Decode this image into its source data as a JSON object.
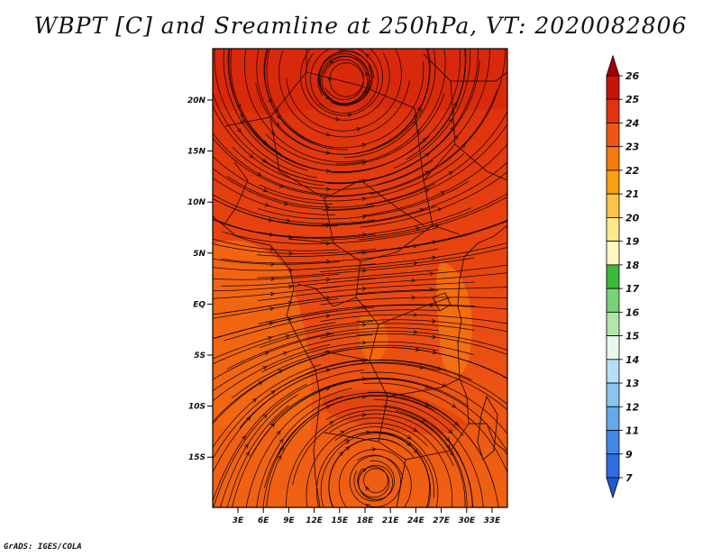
{
  "title": "WBPT [C] and Sreamline at 250hPa, VT: 2020082806",
  "credit": "GrADS: IGES/COLA",
  "map": {
    "lat_labels": [
      "20N",
      "15N",
      "10N",
      "5N",
      "EQ",
      "5S",
      "10S",
      "15S"
    ],
    "lon_labels": [
      "3E",
      "6E",
      "9E",
      "12E",
      "15E",
      "18E",
      "21E",
      "24E",
      "27E",
      "30E",
      "33E"
    ],
    "fill_colors": {
      "base": "#ea4a14",
      "north": "#de2e0c",
      "south": "#f1650f",
      "warm_patch": "#f5780e"
    }
  },
  "colorbar": {
    "labels": [
      "26",
      "25",
      "24",
      "23",
      "22",
      "21",
      "20",
      "19",
      "18",
      "17",
      "16",
      "15",
      "14",
      "13",
      "12",
      "11",
      "9",
      "7"
    ],
    "colors": [
      "#a50000",
      "#c81408",
      "#e2320f",
      "#f05514",
      "#f57a0a",
      "#f8a010",
      "#fbc34a",
      "#fde88c",
      "#fff8c0",
      "#3cb83c",
      "#78d278",
      "#b0e6a8",
      "#e8f8ec",
      "#b8dcf6",
      "#8cc4f0",
      "#64a8ea",
      "#4188e4",
      "#2d6ee0",
      "#1f5acc"
    ]
  }
}
